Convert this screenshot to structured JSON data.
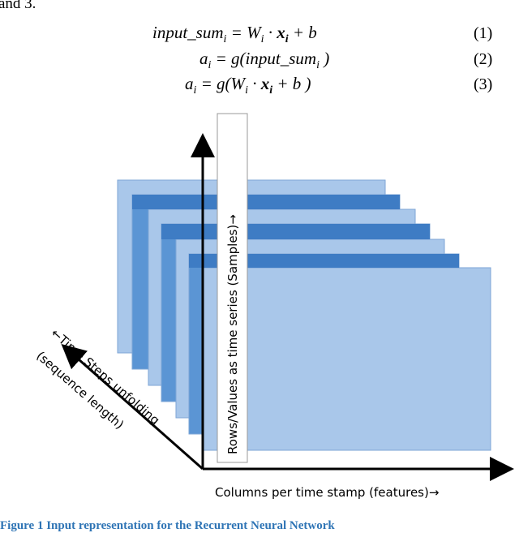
{
  "text_fragment": "and 3.",
  "equations": [
    {
      "parts": [
        "input_sum",
        "i",
        " = W",
        "i",
        " · ",
        "x",
        "i",
        " + b"
      ],
      "number": "(1)"
    },
    {
      "parts": [
        "a",
        "i",
        " = g(input_sum",
        "i",
        " )"
      ],
      "number": "(2)"
    },
    {
      "parts": [
        "a",
        "i",
        " = g(W",
        "i",
        " · ",
        "x",
        "i",
        " + b )"
      ],
      "number": "(3)"
    }
  ],
  "figure": {
    "vertical_axis_label": "Rows/Values as time series (Samples)→",
    "diagonal_axis_label": [
      "←Time Steps unfolding",
      "(sequence length)"
    ],
    "horizontal_axis_label": "Columns per time stamp (features)→"
  },
  "caption": "Figure 1 Input representation for the Recurrent Neural Network"
}
